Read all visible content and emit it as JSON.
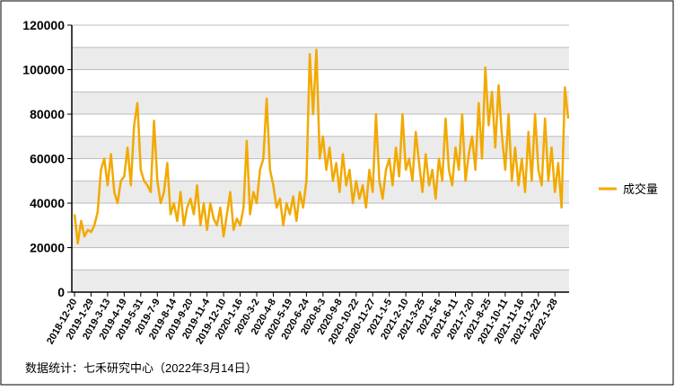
{
  "chart_data": {
    "type": "line",
    "categories": [
      "2018-12-20",
      null,
      null,
      null,
      null,
      "2019-1-29",
      null,
      null,
      null,
      null,
      "2019-3-13",
      null,
      null,
      null,
      null,
      "2019-4-19",
      null,
      null,
      null,
      null,
      "2019-5-31",
      null,
      null,
      null,
      null,
      "2019-7-9",
      null,
      null,
      null,
      null,
      "2019-8-14",
      null,
      null,
      null,
      null,
      "2019-9-20",
      null,
      null,
      null,
      null,
      "2019-11-4",
      null,
      null,
      null,
      null,
      "2019-12-10",
      null,
      null,
      null,
      null,
      "2020-1-16",
      null,
      null,
      null,
      null,
      "2020-3-2",
      null,
      null,
      null,
      null,
      "2020-4-8",
      null,
      null,
      null,
      null,
      "2020-5-19",
      null,
      null,
      null,
      null,
      "2020-6-24",
      null,
      null,
      null,
      null,
      "2020-8-3",
      null,
      null,
      null,
      null,
      "2020-9-8",
      null,
      null,
      null,
      null,
      "2020-10-22",
      null,
      null,
      null,
      null,
      "2020-11-27",
      null,
      null,
      null,
      null,
      "2021-1-5",
      null,
      null,
      null,
      null,
      "2021-2-10",
      null,
      null,
      null,
      null,
      "2021-3-25",
      null,
      null,
      null,
      null,
      "2021-5-6",
      null,
      null,
      null,
      null,
      "2021-6-11",
      null,
      null,
      null,
      null,
      "2021-7-20",
      null,
      null,
      null,
      null,
      "2021-8-25",
      null,
      null,
      null,
      null,
      "2021-10-11",
      null,
      null,
      null,
      null,
      "2021-11-16",
      null,
      null,
      null,
      null,
      "2021-12-22",
      null,
      null,
      null,
      null,
      "2022-1-28",
      null,
      null,
      null,
      null
    ],
    "series": [
      {
        "name": "成交量",
        "color": "#f2a900",
        "values": [
          35000,
          22000,
          32000,
          25000,
          28000,
          27000,
          30000,
          36000,
          55000,
          60000,
          48000,
          62000,
          45000,
          40000,
          50000,
          52000,
          65000,
          48000,
          75000,
          85000,
          55000,
          50000,
          48000,
          45000,
          77000,
          50000,
          40000,
          45000,
          58000,
          35000,
          40000,
          32000,
          45000,
          30000,
          38000,
          42000,
          35000,
          48000,
          30000,
          40000,
          28000,
          40000,
          33000,
          30000,
          38000,
          25000,
          35000,
          45000,
          28000,
          33000,
          30000,
          38000,
          68000,
          35000,
          45000,
          40000,
          55000,
          60000,
          87000,
          55000,
          48000,
          38000,
          42000,
          30000,
          40000,
          35000,
          43000,
          32000,
          45000,
          38000,
          50000,
          107000,
          80000,
          109000,
          60000,
          70000,
          55000,
          65000,
          50000,
          58000,
          45000,
          62000,
          48000,
          55000,
          40000,
          50000,
          42000,
          48000,
          38000,
          55000,
          45000,
          80000,
          50000,
          42000,
          55000,
          60000,
          48000,
          65000,
          52000,
          80000,
          55000,
          60000,
          50000,
          72000,
          58000,
          45000,
          62000,
          48000,
          55000,
          42000,
          60000,
          50000,
          78000,
          55000,
          48000,
          65000,
          55000,
          80000,
          50000,
          62000,
          70000,
          55000,
          85000,
          60000,
          101000,
          75000,
          90000,
          65000,
          93000,
          70000,
          55000,
          80000,
          50000,
          65000,
          48000,
          60000,
          45000,
          72000,
          50000,
          80000,
          55000,
          48000,
          78000,
          50000,
          65000,
          45000,
          58000,
          38000,
          92000,
          78000
        ]
      }
    ],
    "ylim": [
      0,
      120000
    ],
    "yticks": [
      0,
      20000,
      40000,
      60000,
      80000,
      100000,
      120000
    ],
    "grid": true,
    "legend": "right",
    "footnote": "数据统计：七禾研究中心（2022年3月14日）"
  }
}
